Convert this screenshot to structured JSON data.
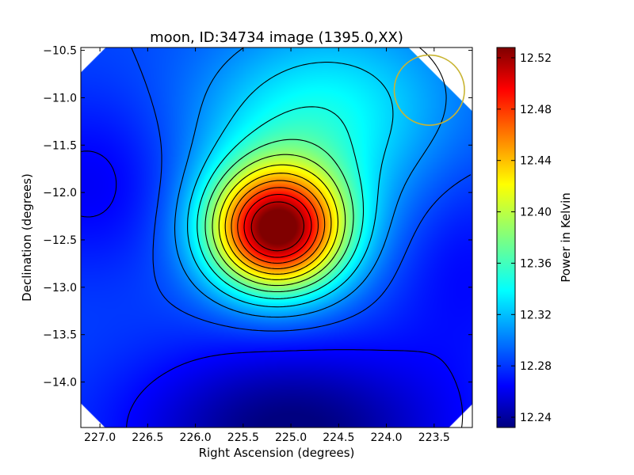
{
  "chart_data": {
    "type": "heatmap",
    "title": "moon, ID:34734 image (1395.0,XX)",
    "xlabel": "Right Ascension (degrees)",
    "ylabel": "Declination (degrees)",
    "xlim": [
      227.2,
      223.1
    ],
    "ylim": [
      -14.48,
      -10.47
    ],
    "x_axis_reversed": true,
    "x_ticks": [
      227.0,
      226.5,
      226.0,
      225.5,
      225.0,
      224.5,
      224.0,
      223.5
    ],
    "x_tick_labels": [
      "227.0",
      "226.5",
      "226.0",
      "225.5",
      "225.0",
      "224.5",
      "224.0",
      "223.5"
    ],
    "y_ticks": [
      -10.5,
      -11.0,
      -11.5,
      -12.0,
      -12.5,
      -13.0,
      -13.5,
      -14.0
    ],
    "y_tick_labels": [
      "−10.5",
      "−11.0",
      "−11.5",
      "−12.0",
      "−12.5",
      "−13.0",
      "−13.5",
      "−14.0"
    ],
    "colormap": "jet",
    "colorbar": {
      "label": "Power in Kelvin",
      "range": [
        12.232,
        12.528
      ],
      "ticks": [
        12.24,
        12.28,
        12.32,
        12.36,
        12.4,
        12.44,
        12.48,
        12.52
      ],
      "tick_labels": [
        "12.24",
        "12.28",
        "12.32",
        "12.36",
        "12.40",
        "12.44",
        "12.48",
        "12.52"
      ]
    },
    "peak": {
      "ra": 225.15,
      "dec": -12.4,
      "value": 12.51
    },
    "field_circle": {
      "ra": 223.55,
      "dec": -10.92,
      "radius_deg": 0.37,
      "color": "#c8b432"
    },
    "contours": true,
    "grid": false
  }
}
